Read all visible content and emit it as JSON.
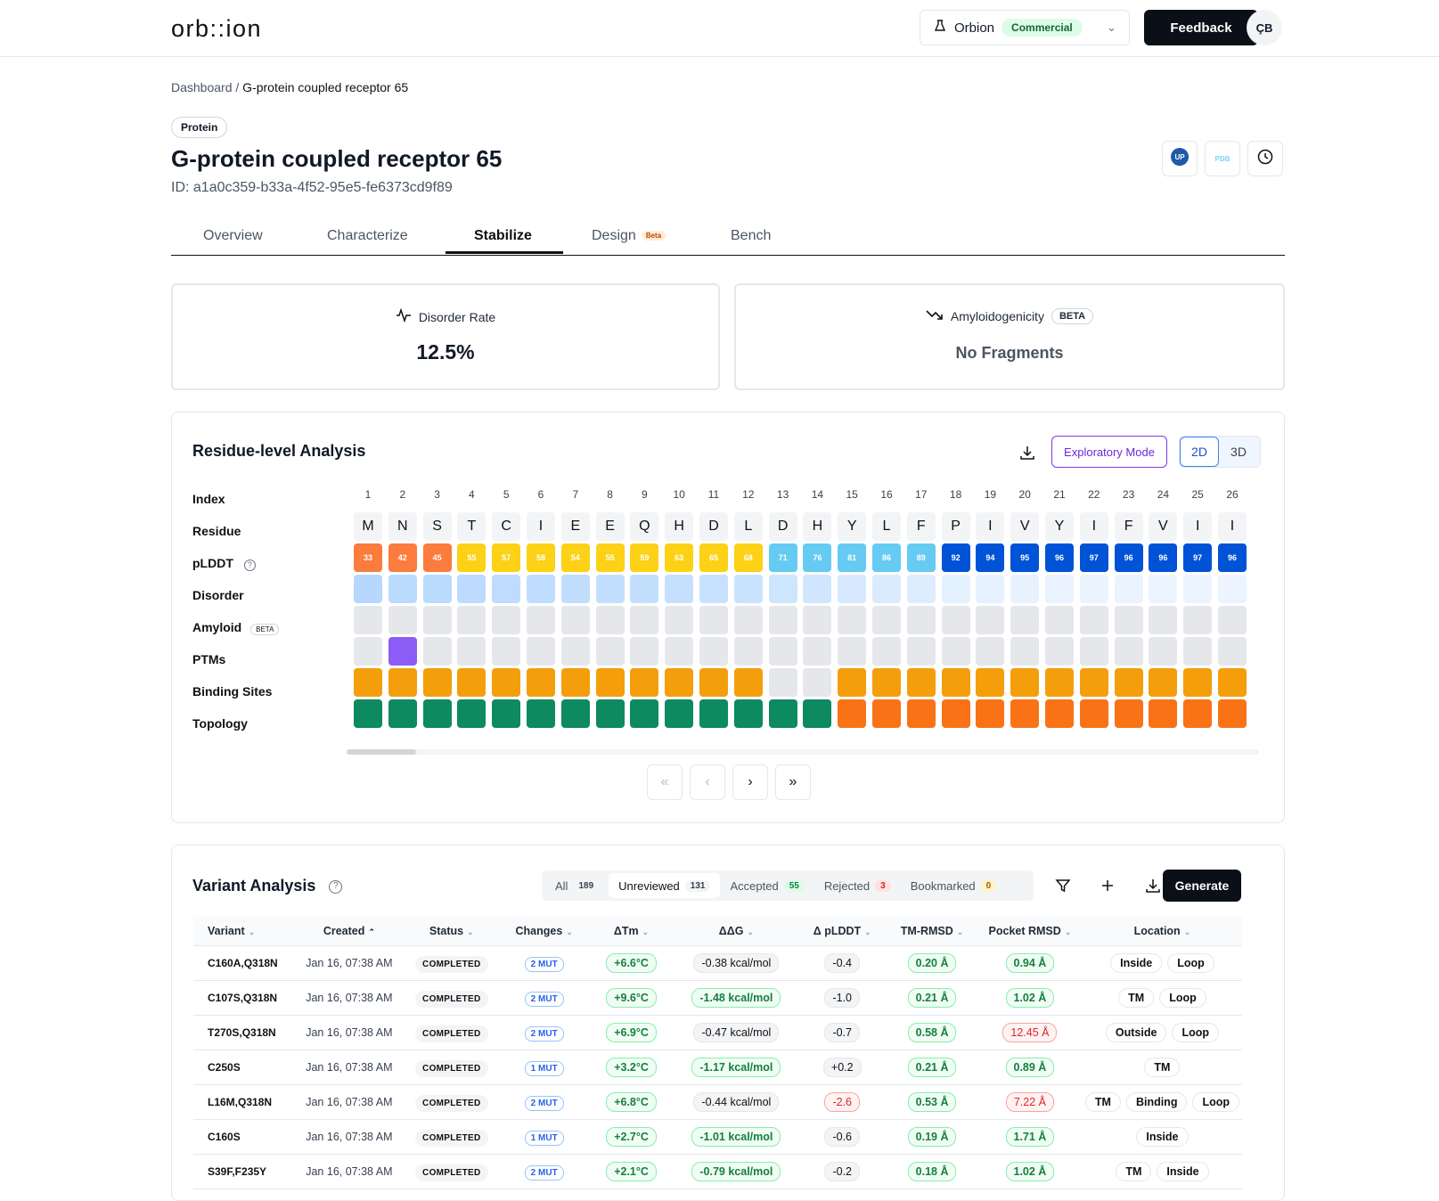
{
  "app": {
    "logo": "orb::ion",
    "org_name": "Orbion",
    "org_plan": "Commercial",
    "feedback": "Feedback",
    "user_initials": "ÇB"
  },
  "breadcrumb": {
    "root": "Dashboard",
    "sep": "/",
    "current": "G-protein coupled receptor 65"
  },
  "protein": {
    "badge": "Protein",
    "title": "G-protein coupled receptor 65",
    "id": "ID: a1a0c359-b33a-4f52-95e5-fe6373cd9f89"
  },
  "header_icons": [
    "uniprot-icon",
    "pdb-icon",
    "history-icon"
  ],
  "pdb_label": "PDB",
  "tabs": [
    {
      "label": "Overview"
    },
    {
      "label": "Characterize"
    },
    {
      "label": "Stabilize",
      "active": true
    },
    {
      "label": "Design",
      "badge": "Beta"
    },
    {
      "label": "Bench"
    }
  ],
  "metrics": {
    "disorder": {
      "label": "Disorder Rate",
      "value": "12.5%"
    },
    "amyloid": {
      "label": "Amyloidogenicity",
      "badge": "BETA",
      "value": "No Fragments"
    }
  },
  "residue": {
    "title": "Residue-level Analysis",
    "exploratory": "Exploratory Mode",
    "view_2d": "2D",
    "view_3d": "3D",
    "row_labels": {
      "index": "Index",
      "residue": "Residue",
      "plddt": "pLDDT",
      "disorder": "Disorder",
      "amyloid": "Amyloid",
      "amyloid_badge": "BETA",
      "ptms": "PTMs",
      "binding": "Binding Sites",
      "topology": "Topology"
    },
    "indices": [
      "1",
      "2",
      "3",
      "4",
      "5",
      "6",
      "7",
      "8",
      "9",
      "10",
      "11",
      "12",
      "13",
      "14",
      "15",
      "16",
      "17",
      "18",
      "19",
      "20",
      "21",
      "22",
      "23",
      "24",
      "25",
      "26"
    ],
    "residues": [
      "M",
      "N",
      "S",
      "T",
      "C",
      "I",
      "E",
      "E",
      "Q",
      "H",
      "D",
      "L",
      "D",
      "H",
      "Y",
      "L",
      "F",
      "P",
      "I",
      "V",
      "Y",
      "I",
      "F",
      "V",
      "I",
      "I"
    ],
    "plddt": [
      "33",
      "42",
      "45",
      "55",
      "57",
      "58",
      "54",
      "55",
      "59",
      "63",
      "65",
      "68",
      "71",
      "76",
      "81",
      "86",
      "89",
      "92",
      "94",
      "95",
      "96",
      "97",
      "96",
      "96",
      "97",
      "96"
    ],
    "disorder_level": [
      0.95,
      0.9,
      0.88,
      0.85,
      0.82,
      0.8,
      0.78,
      0.76,
      0.74,
      0.7,
      0.66,
      0.62,
      0.55,
      0.5,
      0.42,
      0.35,
      0.28,
      0.18,
      0.14,
      0.12,
      0.1,
      0.08,
      0.08,
      0.07,
      0.06,
      0.06
    ],
    "ptm_sites": [
      2
    ],
    "binding_sites": [
      1,
      1,
      1,
      1,
      1,
      1,
      1,
      1,
      1,
      1,
      1,
      1,
      0,
      0,
      1,
      1,
      1,
      1,
      1,
      1,
      1,
      1,
      1,
      1,
      1,
      1
    ],
    "topology": [
      "inside",
      "inside",
      "inside",
      "inside",
      "inside",
      "inside",
      "inside",
      "inside",
      "inside",
      "inside",
      "inside",
      "inside",
      "inside",
      "inside",
      "tm",
      "tm",
      "tm",
      "tm",
      "tm",
      "tm",
      "tm",
      "tm",
      "tm",
      "tm",
      "tm",
      "tm"
    ],
    "colors": {
      "plddt_very_low": "#fb7c3c",
      "plddt_low": "#fcd116",
      "plddt_mid": "#65cbf3",
      "plddt_high": "#0053d6",
      "ptm": "#8b5cf6",
      "binding": "#f59e0b",
      "inside": "#0d8a5f",
      "tm": "#f97316",
      "empty": "#e5e7eb"
    },
    "pager": [
      "«",
      "‹",
      "›",
      "»"
    ]
  },
  "variants": {
    "title": "Variant Analysis",
    "filters": [
      {
        "label": "All",
        "count": "189"
      },
      {
        "label": "Unreviewed",
        "count": "131",
        "active": true
      },
      {
        "label": "Accepted",
        "count": "55"
      },
      {
        "label": "Rejected",
        "count": "3"
      },
      {
        "label": "Bookmarked",
        "count": "0"
      }
    ],
    "generate": "Generate",
    "columns": [
      "Variant",
      "Created",
      "Status",
      "Changes",
      "ΔTm",
      "ΔΔG",
      "Δ pLDDT",
      "TM-RMSD",
      "Pocket RMSD",
      "Location"
    ],
    "rows": [
      {
        "variant": "C160A,Q318N",
        "created": "Jan 16, 07:38 AM",
        "status": "COMPLETED",
        "changes": "2 MUT",
        "tm": "+6.6°C",
        "ddg": "-0.38 kcal/mol",
        "ddg_good": false,
        "plddt": "-0.4",
        "plddt_bad": false,
        "tmrmsd": "0.20 Å",
        "pocket": "0.94 Å",
        "pocket_bad": false,
        "location": [
          "Inside",
          "Loop"
        ]
      },
      {
        "variant": "C107S,Q318N",
        "created": "Jan 16, 07:38 AM",
        "status": "COMPLETED",
        "changes": "2 MUT",
        "tm": "+9.6°C",
        "ddg": "-1.48 kcal/mol",
        "ddg_good": true,
        "plddt": "-1.0",
        "plddt_bad": false,
        "tmrmsd": "0.21 Å",
        "pocket": "1.02 Å",
        "pocket_bad": false,
        "location": [
          "TM",
          "Loop"
        ]
      },
      {
        "variant": "T270S,Q318N",
        "created": "Jan 16, 07:38 AM",
        "status": "COMPLETED",
        "changes": "2 MUT",
        "tm": "+6.9°C",
        "ddg": "-0.47 kcal/mol",
        "ddg_good": false,
        "plddt": "-0.7",
        "plddt_bad": false,
        "tmrmsd": "0.58 Å",
        "pocket": "12.45 Å",
        "pocket_bad": true,
        "location": [
          "Outside",
          "Loop"
        ]
      },
      {
        "variant": "C250S",
        "created": "Jan 16, 07:38 AM",
        "status": "COMPLETED",
        "changes": "1 MUT",
        "tm": "+3.2°C",
        "ddg": "-1.17 kcal/mol",
        "ddg_good": true,
        "plddt": "+0.2",
        "plddt_bad": false,
        "tmrmsd": "0.21 Å",
        "pocket": "0.89 Å",
        "pocket_bad": false,
        "location": [
          "TM"
        ]
      },
      {
        "variant": "L16M,Q318N",
        "created": "Jan 16, 07:38 AM",
        "status": "COMPLETED",
        "changes": "2 MUT",
        "tm": "+6.8°C",
        "ddg": "-0.44 kcal/mol",
        "ddg_good": false,
        "plddt": "-2.6",
        "plddt_bad": true,
        "tmrmsd": "0.53 Å",
        "pocket": "7.22 Å",
        "pocket_bad": true,
        "location": [
          "TM",
          "Binding",
          "Loop"
        ]
      },
      {
        "variant": "C160S",
        "created": "Jan 16, 07:38 AM",
        "status": "COMPLETED",
        "changes": "1 MUT",
        "tm": "+2.7°C",
        "ddg": "-1.01 kcal/mol",
        "ddg_good": true,
        "plddt": "-0.6",
        "plddt_bad": false,
        "tmrmsd": "0.19 Å",
        "pocket": "1.71 Å",
        "pocket_bad": false,
        "location": [
          "Inside"
        ]
      },
      {
        "variant": "S39F,F235Y",
        "created": "Jan 16, 07:38 AM",
        "status": "COMPLETED",
        "changes": "2 MUT",
        "tm": "+2.1°C",
        "ddg": "-0.79 kcal/mol",
        "ddg_good": true,
        "plddt": "-0.2",
        "plddt_bad": false,
        "tmrmsd": "0.18 Å",
        "pocket": "1.02 Å",
        "pocket_bad": false,
        "location": [
          "TM",
          "Inside"
        ]
      }
    ]
  }
}
